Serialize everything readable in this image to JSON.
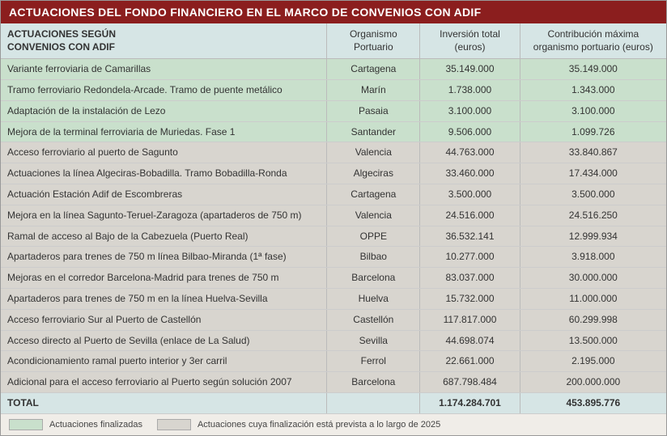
{
  "title": "ACTUACIONES DEL FONDO FINANCIERO EN EL MARCO DE CONVENIOS CON ADIF",
  "headers": {
    "col1a": "ACTUACIONES SEGÚN",
    "col1b": "CONVENIOS CON ADIF",
    "col2a": "Organismo",
    "col2b": "Portuario",
    "col3a": "Inversión total",
    "col3b": "(euros)",
    "col4a": "Contribución máxima",
    "col4b": "organismo portuario (euros)"
  },
  "rows": [
    {
      "status": "green",
      "name": "Variante ferroviaria de Camarillas",
      "org": "Cartagena",
      "inv": "35.149.000",
      "cont": "35.149.000"
    },
    {
      "status": "green",
      "name": "Tramo ferroviario Redondela-Arcade. Tramo de puente metálico",
      "org": "Marín",
      "inv": "1.738.000",
      "cont": "1.343.000"
    },
    {
      "status": "green",
      "name": "Adaptación de la instalación de Lezo",
      "org": "Pasaia",
      "inv": "3.100.000",
      "cont": "3.100.000"
    },
    {
      "status": "green",
      "name": "Mejora de la terminal ferroviaria de Muriedas. Fase 1",
      "org": "Santander",
      "inv": "9.506.000",
      "cont": "1.099.726"
    },
    {
      "status": "gray",
      "name": "Acceso ferroviario al puerto de Sagunto",
      "org": "Valencia",
      "inv": "44.763.000",
      "cont": "33.840.867"
    },
    {
      "status": "gray",
      "name": "Actuaciones la línea Algeciras-Bobadilla. Tramo Bobadilla-Ronda",
      "org": "Algeciras",
      "inv": "33.460.000",
      "cont": "17.434.000"
    },
    {
      "status": "gray",
      "name": "Actuación Estación Adif de Escombreras",
      "org": "Cartagena",
      "inv": "3.500.000",
      "cont": "3.500.000"
    },
    {
      "status": "gray",
      "name": "Mejora en la línea Sagunto-Teruel-Zaragoza (apartaderos de 750 m)",
      "org": "Valencia",
      "inv": "24.516.000",
      "cont": "24.516.250"
    },
    {
      "status": "gray",
      "name": "Ramal de acceso al Bajo de la Cabezuela (Puerto Real)",
      "org": "OPPE",
      "inv": "36.532.141",
      "cont": "12.999.934"
    },
    {
      "status": "gray",
      "name": "Apartaderos para trenes de 750 m línea Bilbao-Miranda (1ª fase)",
      "org": "Bilbao",
      "inv": "10.277.000",
      "cont": "3.918.000"
    },
    {
      "status": "gray",
      "name": "Mejoras en el corredor Barcelona-Madrid para trenes de 750 m",
      "org": "Barcelona",
      "inv": "83.037.000",
      "cont": "30.000.000"
    },
    {
      "status": "gray",
      "name": "Apartaderos para trenes de 750 m en la línea Huelva-Sevilla",
      "org": "Huelva",
      "inv": "15.732.000",
      "cont": "11.000.000"
    },
    {
      "status": "gray",
      "name": "Acceso ferroviario Sur al Puerto de Castellón",
      "org": "Castellón",
      "inv": "117.817.000",
      "cont": "60.299.998"
    },
    {
      "status": "gray",
      "name": "Acceso directo al Puerto de Sevilla (enlace de La Salud)",
      "org": "Sevilla",
      "inv": "44.698.074",
      "cont": "13.500.000"
    },
    {
      "status": "gray",
      "name": "Acondicionamiento ramal puerto interior y 3er carril",
      "org": "Ferrol",
      "inv": "22.661.000",
      "cont": "2.195.000"
    },
    {
      "status": "gray",
      "name": "Adicional para el acceso ferroviario al Puerto según solución 2007",
      "org": "Barcelona",
      "inv": "687.798.484",
      "cont": "200.000.000"
    }
  ],
  "total": {
    "label": "TOTAL",
    "inv": "1.174.284.701",
    "cont": "453.895.776"
  },
  "legend": {
    "finished": "Actuaciones finalizadas",
    "planned": "Actuaciones cuya finalización está prevista a lo largo de 2025"
  }
}
